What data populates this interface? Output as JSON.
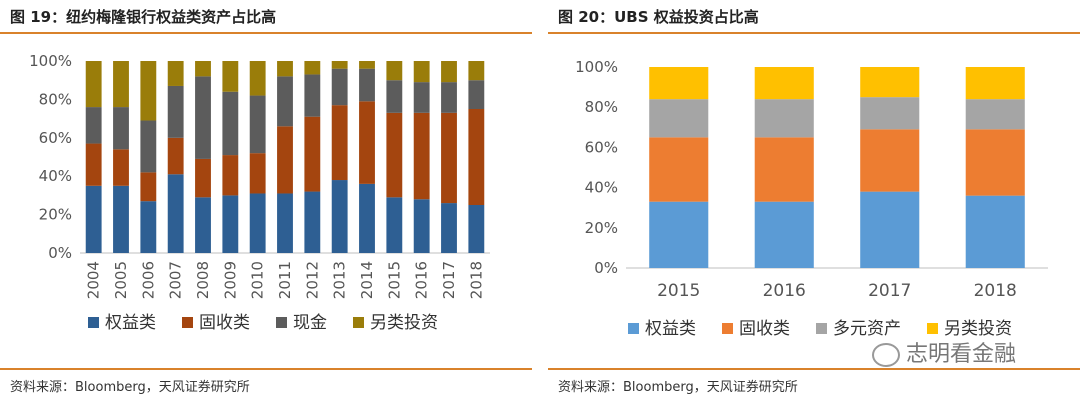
{
  "left": {
    "title": "图 19：纽约梅隆银行权益类资产占比高",
    "source": "资料来源：Bloomberg，天风证券研究所"
  },
  "right": {
    "title": "图 20：UBS 权益投资占比高",
    "source": "资料来源：Bloomberg，天风证券研究所"
  },
  "watermark": "志明看金融",
  "chart_data": [
    {
      "type": "bar",
      "stacked": true,
      "categories": [
        "2004",
        "2005",
        "2006",
        "2007",
        "2008",
        "2009",
        "2010",
        "2011",
        "2012",
        "2013",
        "2014",
        "2015",
        "2016",
        "2017",
        "2018"
      ],
      "ylim": [
        0,
        100
      ],
      "yticks": [
        "0%",
        "20%",
        "40%",
        "60%",
        "80%",
        "100%"
      ],
      "grid": false,
      "legend_position": "bottom",
      "series": [
        {
          "name": "权益类",
          "color": "#2e5f93",
          "values": [
            35,
            35,
            27,
            41,
            29,
            30,
            31,
            31,
            32,
            38,
            36,
            29,
            28,
            26,
            25
          ]
        },
        {
          "name": "固收类",
          "color": "#a4450f",
          "values": [
            22,
            19,
            15,
            19,
            20,
            21,
            21,
            35,
            39,
            39,
            43,
            44,
            45,
            47,
            50
          ]
        },
        {
          "name": "现金",
          "color": "#5c5c5c",
          "values": [
            19,
            22,
            27,
            27,
            43,
            33,
            30,
            26,
            22,
            19,
            17,
            17,
            16,
            16,
            15
          ]
        },
        {
          "name": "另类投资",
          "color": "#9a7d0a",
          "values": [
            24,
            24,
            31,
            13,
            8,
            16,
            18,
            8,
            7,
            4,
            4,
            10,
            11,
            11,
            10
          ]
        }
      ]
    },
    {
      "type": "bar",
      "stacked": true,
      "categories": [
        "2015",
        "2016",
        "2017",
        "2018"
      ],
      "ylim": [
        0,
        100
      ],
      "yticks": [
        "0%",
        "20%",
        "40%",
        "60%",
        "80%",
        "100%"
      ],
      "grid": false,
      "legend_position": "bottom",
      "series": [
        {
          "name": "权益类",
          "color": "#5b9bd5",
          "values": [
            33,
            33,
            38,
            36
          ]
        },
        {
          "name": "固收类",
          "color": "#ed7d31",
          "values": [
            32,
            32,
            31,
            33
          ]
        },
        {
          "name": "多元资产",
          "color": "#a5a5a5",
          "values": [
            19,
            19,
            16,
            15
          ]
        },
        {
          "name": "另类投资",
          "color": "#ffc000",
          "values": [
            16,
            16,
            15,
            16
          ]
        }
      ]
    }
  ]
}
